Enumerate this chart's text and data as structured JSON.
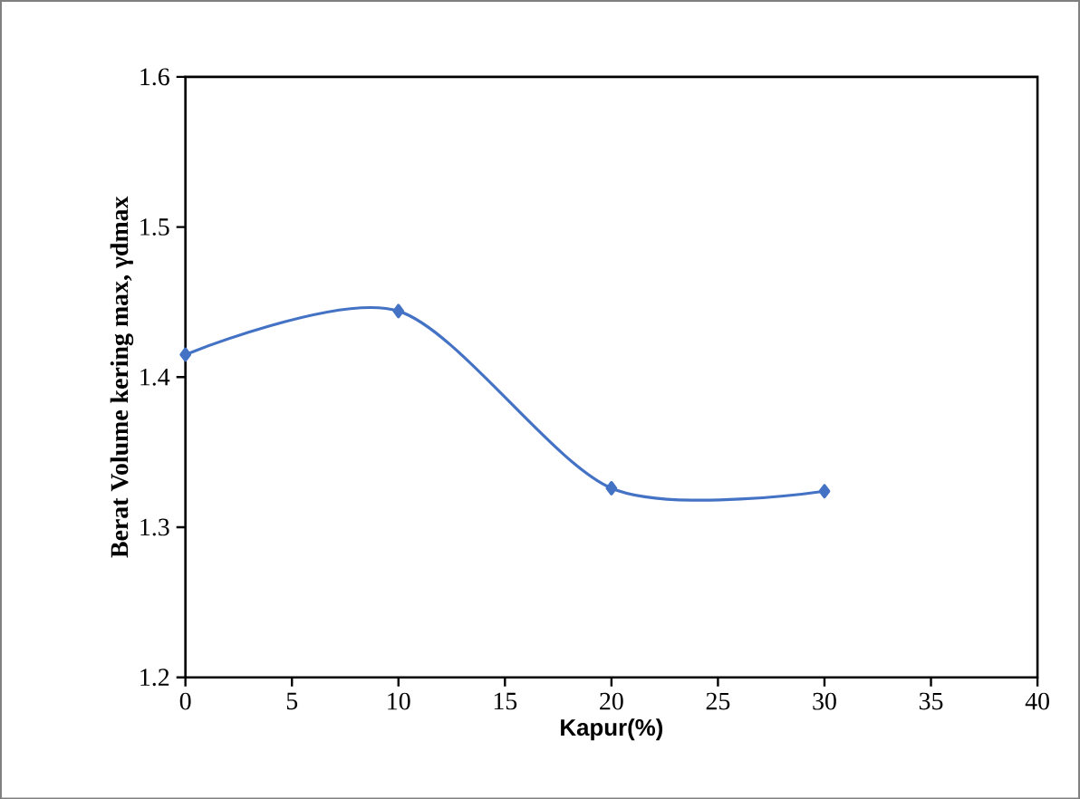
{
  "chart_data": {
    "type": "line",
    "xlabel": "Kapur(%)",
    "ylabel": "Berat Volume kering max, γdmax",
    "x": [
      0,
      10,
      20,
      30
    ],
    "series": [
      {
        "color": "#4472c4",
        "values": [
          1.415,
          1.444,
          1.326,
          1.324
        ]
      }
    ],
    "xlim": [
      0,
      40
    ],
    "xticks": [
      0,
      5,
      10,
      15,
      20,
      25,
      30,
      35,
      40
    ],
    "ylim": [
      1.2,
      1.6
    ],
    "yticks": [
      1.2,
      1.3,
      1.4,
      1.5,
      1.6
    ],
    "grid": false,
    "marker": "diamond",
    "line_style": "solid"
  }
}
